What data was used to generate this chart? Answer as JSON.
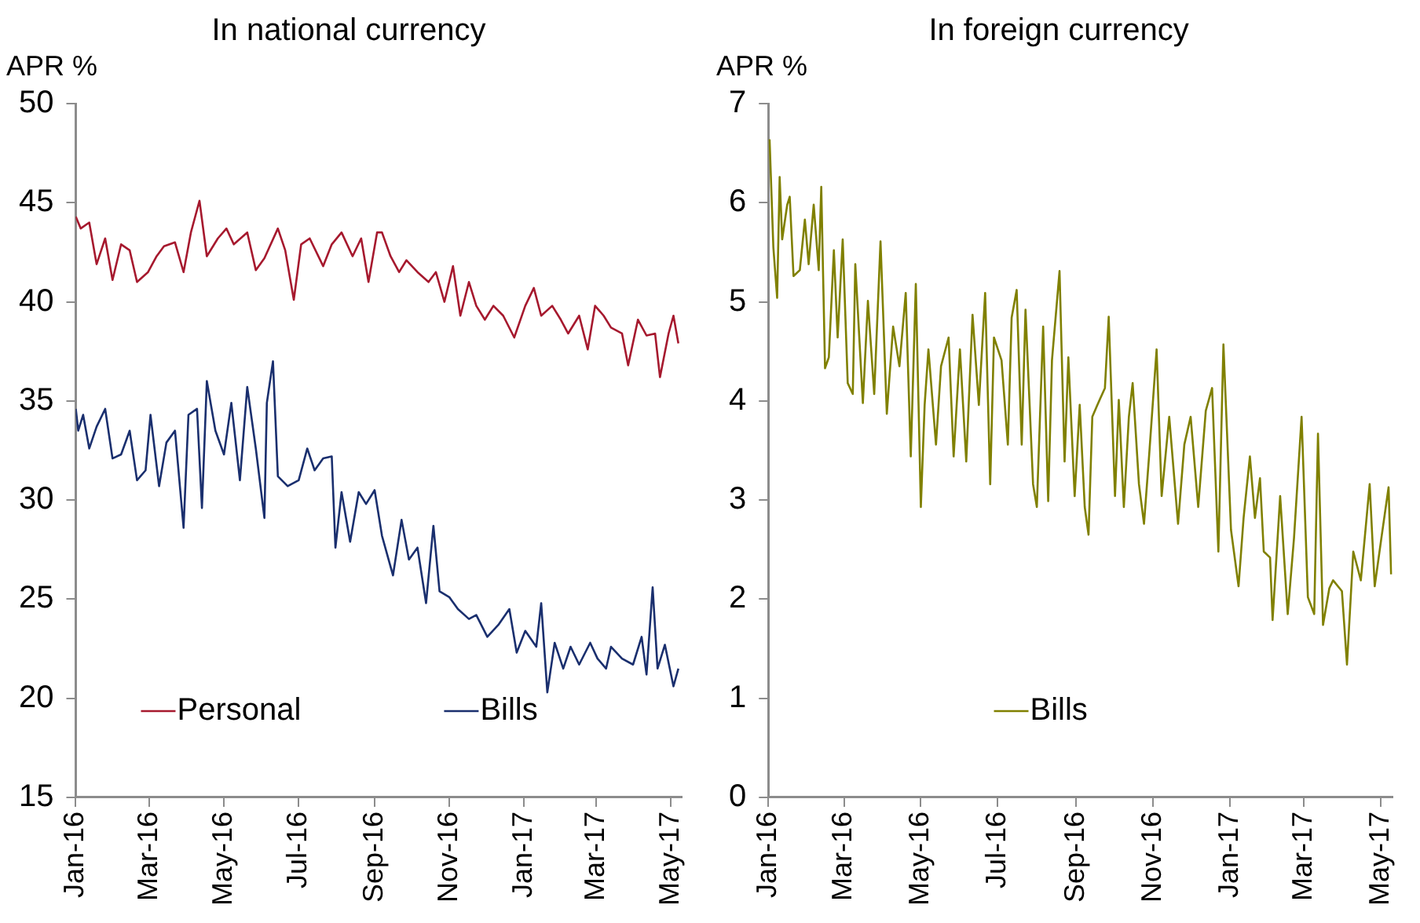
{
  "chart_data": [
    {
      "type": "line",
      "title": "In national currency",
      "ylabel": "APR %",
      "marker": "none",
      "legend": "bottom",
      "xlim": [
        "2016-01-01",
        "2017-05-10"
      ],
      "ylim": [
        15,
        50
      ],
      "yticks": [
        15,
        20,
        25,
        30,
        35,
        40,
        45,
        50
      ],
      "xticks": [
        {
          "value": "2016-01-01",
          "label": "Jan-16"
        },
        {
          "value": "2016-03-01",
          "label": "Mar-16"
        },
        {
          "value": "2016-05-01",
          "label": "May-16"
        },
        {
          "value": "2016-07-01",
          "label": "Jul-16"
        },
        {
          "value": "2016-09-01",
          "label": "Sep-16"
        },
        {
          "value": "2016-11-01",
          "label": "Nov-16"
        },
        {
          "value": "2017-01-01",
          "label": "Jan-17"
        },
        {
          "value": "2017-03-01",
          "label": "Mar-17"
        },
        {
          "value": "2017-05-01",
          "label": "May-17"
        }
      ],
      "series": [
        {
          "name": "Personal",
          "color": "#a6192e",
          "x": [
            "2016-01-01",
            "2016-01-05",
            "2016-01-12",
            "2016-01-18",
            "2016-01-25",
            "2016-01-31",
            "2016-02-07",
            "2016-02-14",
            "2016-02-20",
            "2016-02-29",
            "2016-03-07",
            "2016-03-13",
            "2016-03-22",
            "2016-03-29",
            "2016-04-04",
            "2016-04-11",
            "2016-04-17",
            "2016-04-26",
            "2016-05-03",
            "2016-05-09",
            "2016-05-20",
            "2016-05-27",
            "2016-06-03",
            "2016-06-14",
            "2016-06-20",
            "2016-06-27",
            "2016-07-03",
            "2016-07-10",
            "2016-07-21",
            "2016-07-28",
            "2016-08-05",
            "2016-08-14",
            "2016-08-21",
            "2016-08-27",
            "2016-09-03",
            "2016-09-07",
            "2016-09-14",
            "2016-09-21",
            "2016-09-27",
            "2016-10-06",
            "2016-10-15",
            "2016-10-21",
            "2016-10-28",
            "2016-11-04",
            "2016-11-10",
            "2016-11-17",
            "2016-11-23",
            "2016-11-30",
            "2016-12-07",
            "2016-12-15",
            "2016-12-24",
            "2017-01-02",
            "2017-01-09",
            "2017-01-15",
            "2017-01-24",
            "2017-01-31",
            "2017-02-06",
            "2017-02-15",
            "2017-02-22",
            "2017-02-28",
            "2017-03-07",
            "2017-03-13",
            "2017-03-22",
            "2017-03-27",
            "2017-04-04",
            "2017-04-11",
            "2017-04-18",
            "2017-04-22",
            "2017-04-29",
            "2017-05-03",
            "2017-05-07"
          ],
          "values": [
            44.3,
            43.7,
            44.0,
            41.9,
            43.2,
            41.1,
            42.9,
            42.6,
            41.0,
            41.5,
            42.3,
            42.8,
            43.0,
            41.5,
            43.5,
            45.1,
            42.3,
            43.2,
            43.7,
            42.9,
            43.5,
            41.6,
            42.2,
            43.7,
            42.6,
            40.1,
            42.9,
            43.2,
            41.8,
            42.9,
            43.5,
            42.3,
            43.2,
            41.0,
            43.5,
            43.5,
            42.3,
            41.5,
            42.1,
            41.5,
            41.0,
            41.5,
            40.0,
            41.8,
            39.3,
            41.0,
            39.8,
            39.1,
            39.8,
            39.3,
            38.2,
            39.8,
            40.7,
            39.3,
            39.8,
            39.1,
            38.4,
            39.3,
            37.6,
            39.8,
            39.3,
            38.7,
            38.4,
            36.8,
            39.1,
            38.3,
            38.4,
            36.2,
            38.4,
            39.3,
            37.9
          ]
        },
        {
          "name": "Bills",
          "color": "#1a2f6e",
          "x": [
            "2016-01-01",
            "2016-01-03",
            "2016-01-07",
            "2016-01-12",
            "2016-01-18",
            "2016-01-25",
            "2016-01-31",
            "2016-02-07",
            "2016-02-14",
            "2016-02-20",
            "2016-02-27",
            "2016-03-02",
            "2016-03-09",
            "2016-03-15",
            "2016-03-22",
            "2016-03-29",
            "2016-04-02",
            "2016-04-09",
            "2016-04-13",
            "2016-04-17",
            "2016-04-24",
            "2016-05-01",
            "2016-05-07",
            "2016-05-14",
            "2016-05-20",
            "2016-05-27",
            "2016-06-03",
            "2016-06-05",
            "2016-06-10",
            "2016-06-14",
            "2016-06-22",
            "2016-07-01",
            "2016-07-08",
            "2016-07-14",
            "2016-07-21",
            "2016-07-28",
            "2016-07-31",
            "2016-08-05",
            "2016-08-12",
            "2016-08-19",
            "2016-08-25",
            "2016-09-01",
            "2016-09-07",
            "2016-09-16",
            "2016-09-23",
            "2016-09-29",
            "2016-10-06",
            "2016-10-13",
            "2016-10-19",
            "2016-10-24",
            "2016-11-01",
            "2016-11-08",
            "2016-11-17",
            "2016-11-23",
            "2016-12-02",
            "2016-12-11",
            "2016-12-20",
            "2016-12-26",
            "2017-01-02",
            "2017-01-11",
            "2017-01-15",
            "2017-01-20",
            "2017-01-26",
            "2017-02-02",
            "2017-02-08",
            "2017-02-15",
            "2017-02-24",
            "2017-03-02",
            "2017-03-09",
            "2017-03-13",
            "2017-03-22",
            "2017-03-31",
            "2017-04-07",
            "2017-04-11",
            "2017-04-16",
            "2017-04-20",
            "2017-04-26",
            "2017-05-03",
            "2017-05-07"
          ],
          "values": [
            34.6,
            33.5,
            34.3,
            32.6,
            33.7,
            34.6,
            32.1,
            32.3,
            33.5,
            31.0,
            31.5,
            34.3,
            30.7,
            32.9,
            33.5,
            28.6,
            34.3,
            34.6,
            29.6,
            36.0,
            33.5,
            32.3,
            34.9,
            31.0,
            35.7,
            32.6,
            29.1,
            34.9,
            37.0,
            31.2,
            30.7,
            31.0,
            32.6,
            31.5,
            32.1,
            32.2,
            27.6,
            30.4,
            27.9,
            30.4,
            29.8,
            30.5,
            28.2,
            26.2,
            29.0,
            27.0,
            27.6,
            24.8,
            28.7,
            25.4,
            25.1,
            24.5,
            24.0,
            24.2,
            23.1,
            23.7,
            24.5,
            22.3,
            23.4,
            22.6,
            24.8,
            20.3,
            22.8,
            21.5,
            22.6,
            21.7,
            22.8,
            22.0,
            21.5,
            22.6,
            22.0,
            21.7,
            23.1,
            21.2,
            25.6,
            21.5,
            22.7,
            20.6,
            21.5
          ]
        }
      ]
    },
    {
      "type": "line",
      "title": "In foreign currency",
      "ylabel": "APR %",
      "marker": "none",
      "legend": "bottom",
      "xlim": [
        "2016-01-01",
        "2017-05-10"
      ],
      "ylim": [
        0,
        7
      ],
      "yticks": [
        0,
        1,
        2,
        3,
        4,
        5,
        6,
        7
      ],
      "xticks": [
        {
          "value": "2016-01-01",
          "label": "Jan-16"
        },
        {
          "value": "2016-03-01",
          "label": "Mar-16"
        },
        {
          "value": "2016-05-01",
          "label": "May-16"
        },
        {
          "value": "2016-07-01",
          "label": "Jul-16"
        },
        {
          "value": "2016-09-01",
          "label": "Sep-16"
        },
        {
          "value": "2016-11-01",
          "label": "Nov-16"
        },
        {
          "value": "2017-01-01",
          "label": "Jan-17"
        },
        {
          "value": "2017-03-01",
          "label": "Mar-17"
        },
        {
          "value": "2017-05-01",
          "label": "May-17"
        }
      ],
      "series": [
        {
          "name": "Bills",
          "color": "#808000",
          "x": [
            "2016-01-02",
            "2016-01-05",
            "2016-01-08",
            "2016-01-10",
            "2016-01-12",
            "2016-01-16",
            "2016-01-18",
            "2016-01-21",
            "2016-01-26",
            "2016-01-30",
            "2016-02-02",
            "2016-02-06",
            "2016-02-10",
            "2016-02-12",
            "2016-02-15",
            "2016-02-18",
            "2016-02-22",
            "2016-02-25",
            "2016-02-29",
            "2016-03-04",
            "2016-03-08",
            "2016-03-10",
            "2016-03-16",
            "2016-03-20",
            "2016-03-25",
            "2016-03-30",
            "2016-04-04",
            "2016-04-09",
            "2016-04-14",
            "2016-04-19",
            "2016-04-23",
            "2016-04-27",
            "2016-05-01",
            "2016-05-04",
            "2016-05-07",
            "2016-05-13",
            "2016-05-17",
            "2016-05-23",
            "2016-05-27",
            "2016-06-01",
            "2016-06-06",
            "2016-06-11",
            "2016-06-16",
            "2016-06-21",
            "2016-06-25",
            "2016-06-28",
            "2016-07-04",
            "2016-07-09",
            "2016-07-12",
            "2016-07-16",
            "2016-07-20",
            "2016-07-23",
            "2016-07-29",
            "2016-08-01",
            "2016-08-06",
            "2016-08-10",
            "2016-08-13",
            "2016-08-19",
            "2016-08-23",
            "2016-08-26",
            "2016-08-31",
            "2016-09-04",
            "2016-09-08",
            "2016-09-11",
            "2016-09-14",
            "2016-09-18",
            "2016-09-24",
            "2016-09-27",
            "2016-10-02",
            "2016-10-05",
            "2016-10-09",
            "2016-10-13",
            "2016-10-16",
            "2016-10-21",
            "2016-10-25",
            "2016-10-29",
            "2016-11-04",
            "2016-11-08",
            "2016-11-14",
            "2016-11-21",
            "2016-11-26",
            "2016-12-01",
            "2016-12-07",
            "2016-12-13",
            "2016-12-18",
            "2016-12-23",
            "2016-12-27",
            "2017-01-02",
            "2017-01-08",
            "2017-01-12",
            "2017-01-17",
            "2017-01-21",
            "2017-01-25",
            "2017-01-28",
            "2017-02-02",
            "2017-02-04",
            "2017-02-10",
            "2017-02-16",
            "2017-02-21",
            "2017-02-27",
            "2017-03-04",
            "2017-03-09",
            "2017-03-12",
            "2017-03-16",
            "2017-03-21",
            "2017-03-24",
            "2017-03-31",
            "2017-04-04",
            "2017-04-09",
            "2017-04-15",
            "2017-04-22",
            "2017-04-26",
            "2017-05-01",
            "2017-05-07",
            "2017-05-09"
          ],
          "values": [
            6.64,
            5.55,
            5.04,
            6.26,
            5.63,
            5.98,
            6.06,
            5.26,
            5.32,
            5.83,
            5.38,
            5.98,
            5.32,
            6.16,
            4.33,
            4.44,
            5.52,
            4.64,
            5.63,
            4.18,
            4.07,
            5.38,
            3.98,
            5.01,
            4.07,
            5.61,
            3.87,
            4.75,
            4.35,
            5.09,
            3.44,
            5.18,
            2.93,
            3.96,
            4.52,
            3.56,
            4.35,
            4.64,
            3.44,
            4.52,
            3.39,
            4.87,
            3.96,
            5.09,
            3.16,
            4.64,
            4.41,
            3.56,
            4.84,
            5.12,
            3.56,
            4.92,
            3.16,
            2.93,
            4.75,
            2.99,
            4.41,
            5.31,
            3.39,
            4.44,
            3.04,
            3.96,
            2.93,
            2.65,
            3.84,
            3.96,
            4.13,
            4.85,
            3.04,
            4.01,
            2.93,
            3.84,
            4.18,
            3.16,
            2.76,
            3.44,
            4.52,
            3.04,
            3.84,
            2.76,
            3.56,
            3.84,
            2.93,
            3.9,
            4.13,
            2.48,
            4.57,
            2.7,
            2.13,
            2.82,
            3.44,
            2.82,
            3.22,
            2.48,
            2.42,
            1.79,
            3.04,
            1.85,
            2.62,
            3.84,
            2.02,
            1.85,
            3.67,
            1.74,
            2.11,
            2.19,
            2.08,
            1.34,
            2.48,
            2.19,
            3.16,
            2.13,
            2.59,
            3.13,
            2.25
          ]
        }
      ]
    }
  ]
}
